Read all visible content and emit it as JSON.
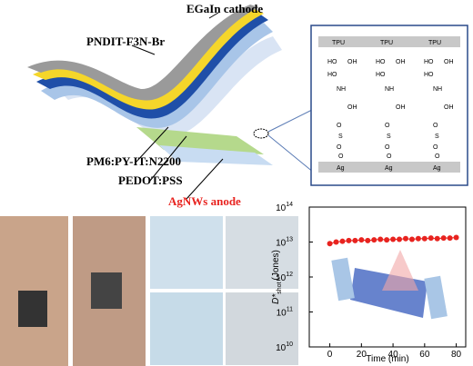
{
  "device": {
    "labels": [
      "EGaIn cathode",
      "PNDIT-F3N-Br",
      "PM6:PY-IT:N2200",
      "PEDOT:PSS",
      "AgNWs anode"
    ]
  },
  "structure": {
    "top": [
      "TPU",
      "TPU",
      "TPU"
    ],
    "bottom": [
      "Ag",
      "Ag",
      "Ag"
    ],
    "molecules": [
      [
        "HO",
        "OH",
        "HO",
        "NH",
        "OH",
        "O",
        "S",
        "O",
        "O"
      ],
      [
        "HO",
        "OH",
        "HO",
        "NH",
        "OH",
        "O",
        "S",
        "O",
        "O"
      ],
      [
        "HO",
        "OH",
        "HO",
        "NH",
        "OH",
        "O",
        "S",
        "O",
        "O"
      ]
    ]
  },
  "chart_data": {
    "type": "scatter",
    "x_label": "Time (min)",
    "y_label": {
      "main": "D*",
      "sub": "shot",
      "unit": "(Jones)"
    },
    "x": [
      0,
      4,
      8,
      12,
      16,
      20,
      24,
      28,
      32,
      36,
      40,
      44,
      48,
      52,
      56,
      60,
      64,
      68,
      72,
      76,
      80
    ],
    "series": [
      {
        "color": "#e8231f",
        "values": [
          9000000000000.0,
          10000000000000.0,
          10500000000000.0,
          11000000000000.0,
          11000000000000.0,
          11500000000000.0,
          11000000000000.0,
          11500000000000.0,
          12000000000000.0,
          11500000000000.0,
          12000000000000.0,
          12000000000000.0,
          12500000000000.0,
          12000000000000.0,
          12500000000000.0,
          12500000000000.0,
          13000000000000.0,
          12500000000000.0,
          13000000000000.0,
          13000000000000.0,
          13500000000000.0
        ]
      }
    ],
    "xlim": [
      -13,
      86
    ],
    "xticks": [
      0,
      20,
      40,
      60,
      80
    ],
    "ylim": [
      10000000000,
      100000000000000
    ],
    "log_y": true,
    "yticks": [
      {
        "value": 10000000000,
        "label": "10",
        "sup": "10"
      },
      {
        "value": 100000000000,
        "label": "10",
        "sup": "11"
      },
      {
        "value": 1000000000000,
        "label": "10",
        "sup": "12"
      },
      {
        "value": 10000000000000,
        "label": "10",
        "sup": "13"
      },
      {
        "value": 100000000000000,
        "label": "10",
        "sup": "14"
      }
    ]
  }
}
